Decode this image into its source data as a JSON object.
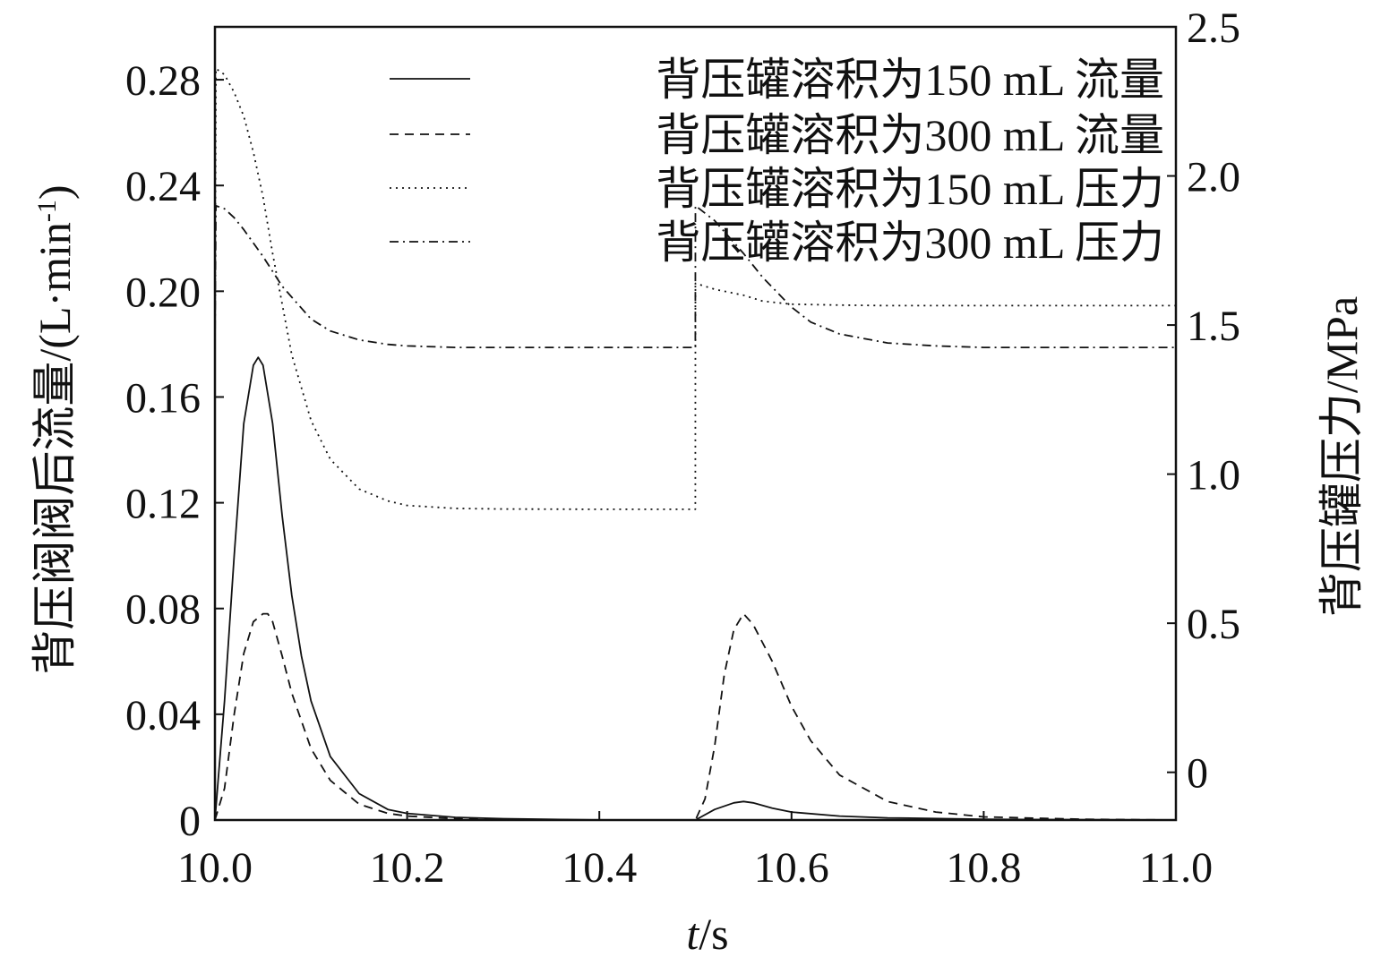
{
  "chart_data": {
    "type": "line",
    "xlabel_italic": "t",
    "xlabel_unit": "/s",
    "ylabel_left": "背压阀阀后流量/(L·min",
    "ylabel_left_sup": "-1",
    "ylabel_left_close": ")",
    "ylabel_right": "背压罐压力/MPa",
    "xlim": [
      10.0,
      11.0
    ],
    "ylim_left": [
      0,
      0.3
    ],
    "ylim_right": [
      -0.16,
      2.5
    ],
    "grid": false,
    "legend_position": "top-right",
    "x_ticks": [
      "10.0",
      "10.2",
      "10.4",
      "10.6",
      "10.8",
      "11.0"
    ],
    "y_left_ticks": [
      "0",
      "0.04",
      "0.08",
      "0.12",
      "0.16",
      "0.20",
      "0.24",
      "0.28"
    ],
    "y_right_ticks": [
      "0",
      "0.5",
      "1.0",
      "1.5",
      "2.0",
      "2.5"
    ],
    "series": [
      {
        "name": "背压罐溶积为150 mL 流量",
        "axis": "left",
        "style": "solid",
        "x": [
          10.0,
          10.01,
          10.02,
          10.03,
          10.04,
          10.045,
          10.05,
          10.06,
          10.07,
          10.08,
          10.09,
          10.1,
          10.12,
          10.15,
          10.18,
          10.2,
          10.25,
          10.3,
          10.4,
          10.5,
          10.52,
          10.54,
          10.55,
          10.56,
          10.58,
          10.6,
          10.65,
          10.7,
          10.8,
          10.9,
          11.0
        ],
        "y": [
          0.0,
          0.045,
          0.1,
          0.15,
          0.172,
          0.175,
          0.172,
          0.15,
          0.115,
          0.085,
          0.062,
          0.045,
          0.024,
          0.01,
          0.004,
          0.0025,
          0.001,
          0.0005,
          0.0,
          0.0,
          0.004,
          0.0065,
          0.007,
          0.0065,
          0.0045,
          0.003,
          0.0015,
          0.0008,
          0.0003,
          0.0001,
          0.0
        ]
      },
      {
        "name": "背压罐溶积为300 mL 流量",
        "axis": "left",
        "style": "dashed",
        "x": [
          10.0,
          10.01,
          10.02,
          10.03,
          10.04,
          10.05,
          10.055,
          10.06,
          10.07,
          10.08,
          10.1,
          10.12,
          10.15,
          10.18,
          10.2,
          10.25,
          10.3,
          10.4,
          10.5,
          10.51,
          10.52,
          10.53,
          10.54,
          10.55,
          10.56,
          10.58,
          10.6,
          10.62,
          10.65,
          10.7,
          10.75,
          10.8,
          10.9,
          11.0
        ],
        "y": [
          0.0,
          0.012,
          0.04,
          0.063,
          0.075,
          0.078,
          0.078,
          0.075,
          0.062,
          0.048,
          0.027,
          0.015,
          0.006,
          0.0025,
          0.0015,
          0.0005,
          0.0002,
          0.0,
          0.0,
          0.008,
          0.028,
          0.055,
          0.072,
          0.078,
          0.074,
          0.06,
          0.043,
          0.03,
          0.017,
          0.007,
          0.003,
          0.0012,
          0.0003,
          0.0
        ]
      },
      {
        "name": "背压罐溶积为150 mL 压力",
        "axis": "right",
        "style": "dotted",
        "x": [
          10.0,
          10.001,
          10.01,
          10.02,
          10.03,
          10.04,
          10.05,
          10.06,
          10.08,
          10.1,
          10.12,
          10.15,
          10.18,
          10.2,
          10.25,
          10.3,
          10.4,
          10.4999,
          10.5,
          10.52,
          10.55,
          10.57,
          10.6,
          10.65,
          10.7,
          10.8,
          10.9,
          11.0
        ],
        "y": [
          1.42,
          2.36,
          2.34,
          2.28,
          2.2,
          2.08,
          1.93,
          1.74,
          1.4,
          1.18,
          1.05,
          0.95,
          0.91,
          0.895,
          0.885,
          0.883,
          0.882,
          0.882,
          1.64,
          1.62,
          1.6,
          1.58,
          1.57,
          1.567,
          1.565,
          1.565,
          1.565,
          1.565
        ]
      },
      {
        "name": "背压罐溶积为300 mL 压力",
        "axis": "right",
        "style": "dashdot",
        "x": [
          10.0,
          10.001,
          10.01,
          10.02,
          10.03,
          10.05,
          10.07,
          10.1,
          10.12,
          10.15,
          10.18,
          10.2,
          10.25,
          10.3,
          10.4,
          10.4999,
          10.5,
          10.52,
          10.55,
          10.57,
          10.6,
          10.62,
          10.65,
          10.7,
          10.75,
          10.8,
          10.9,
          11.0
        ],
        "y": [
          1.42,
          1.9,
          1.89,
          1.86,
          1.82,
          1.73,
          1.63,
          1.52,
          1.48,
          1.45,
          1.435,
          1.43,
          1.425,
          1.425,
          1.425,
          1.425,
          1.9,
          1.85,
          1.74,
          1.66,
          1.56,
          1.51,
          1.47,
          1.44,
          1.43,
          1.425,
          1.425,
          1.425
        ]
      }
    ]
  }
}
